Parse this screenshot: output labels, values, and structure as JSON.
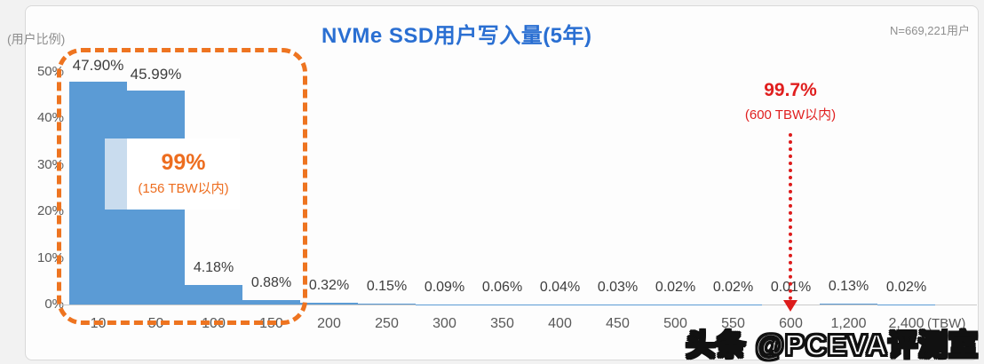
{
  "chart_data": {
    "type": "bar",
    "title": "NVMe SSD用户写入量(5年)",
    "sample_label": "N=669,221用户",
    "ylabel": "(用户比例)",
    "xunit": "(TBW)",
    "categories": [
      "10",
      "50",
      "100",
      "150",
      "200",
      "250",
      "300",
      "350",
      "400",
      "450",
      "500",
      "550",
      "600",
      "1,200",
      "2,400"
    ],
    "values": [
      47.9,
      45.99,
      4.18,
      0.88,
      0.32,
      0.15,
      0.09,
      0.06,
      0.04,
      0.03,
      0.02,
      0.02,
      0.01,
      0.13,
      0.02
    ],
    "value_labels": [
      "47.90%",
      "45.99%",
      "4.18%",
      "0.88%",
      "0.32%",
      "0.15%",
      "0.09%",
      "0.06%",
      "0.04%",
      "0.03%",
      "0.02%",
      "0.02%",
      "0.01%",
      "0.13%",
      "0.02%"
    ],
    "ylim": [
      0,
      50
    ],
    "yticks": [
      "0%",
      "10%",
      "20%",
      "30%",
      "40%",
      "50%"
    ],
    "grid": "off",
    "legend": "none",
    "annotations": {
      "highlight": {
        "line1": "99%",
        "line2": "(156 TBW以内)",
        "covers_categories": [
          "10",
          "50",
          "100",
          "150"
        ]
      },
      "red_marker": {
        "line1": "99.7%",
        "line2": "(600 TBW以内)",
        "arrow_at_category": "600"
      }
    },
    "colors": {
      "bar": "#5b9bd5",
      "bar_highlight_strip": "#c9dcee",
      "accent_orange": "#ee7420",
      "accent_red": "#dd1c1c",
      "title_blue": "#2a6fd2",
      "axis_text": "#595959",
      "value_text": "#3d3d3d"
    }
  },
  "watermark": {
    "text": "头条 @PCEVA评测室"
  }
}
